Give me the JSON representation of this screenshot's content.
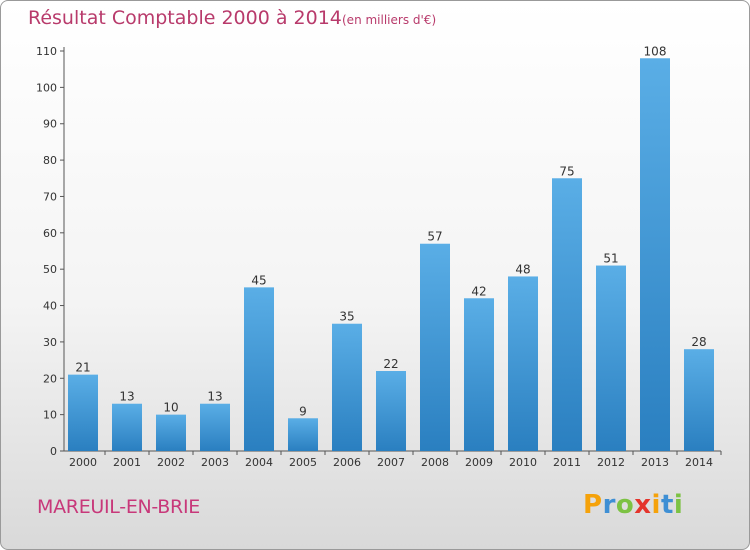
{
  "chart_data": {
    "type": "bar",
    "title": "Résultat Comptable 2000 à 2014",
    "subtitle": "(en milliers d'€)",
    "categories": [
      "2000",
      "2001",
      "2002",
      "2003",
      "2004",
      "2005",
      "2006",
      "2007",
      "2008",
      "2009",
      "2010",
      "2011",
      "2012",
      "2013",
      "2014"
    ],
    "values": [
      21,
      13,
      10,
      13,
      45,
      9,
      35,
      22,
      57,
      42,
      48,
      75,
      51,
      108,
      28
    ],
    "ylim": [
      0,
      110
    ],
    "yticks": [
      0,
      10,
      20,
      30,
      40,
      50,
      60,
      70,
      80,
      90,
      100,
      110
    ],
    "xlabel": "",
    "ylabel": "",
    "grid": false,
    "bar_color_top": "#5aaee6",
    "bar_color_bottom": "#2a7fc0"
  },
  "footer": {
    "commune": "MAREUIL-EN-BRIE",
    "logo_letters": [
      {
        "char": "P",
        "color": "#f5a20a"
      },
      {
        "char": "r",
        "color": "#3e8fd4"
      },
      {
        "char": "o",
        "color": "#7cc243"
      },
      {
        "char": "x",
        "color": "#e4342c"
      },
      {
        "char": "i",
        "color": "#f5a20a"
      },
      {
        "char": "t",
        "color": "#3e8fd4"
      },
      {
        "char": "i",
        "color": "#7cc243"
      }
    ]
  }
}
